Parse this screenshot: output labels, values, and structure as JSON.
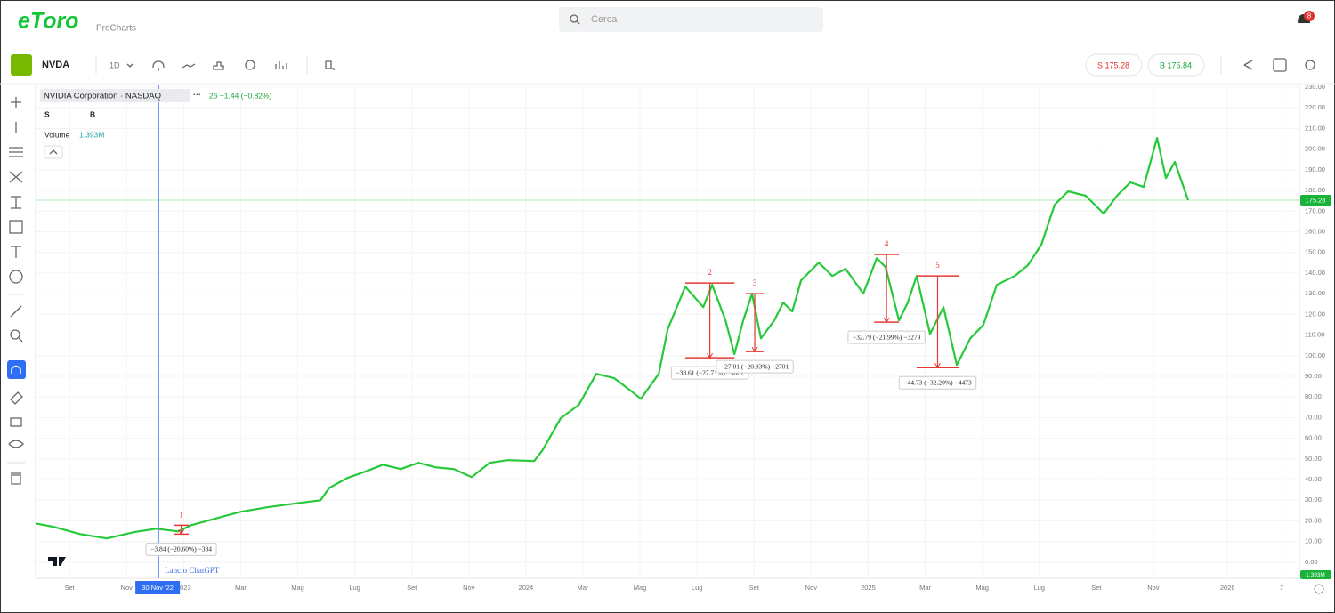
{
  "header": {
    "logo": "eToro",
    "product": "ProCharts",
    "search_placeholder": "Cerca",
    "notification_count": "8"
  },
  "toolbar": {
    "symbol": "NVDA",
    "interval": "1D",
    "sell": "S 175.28",
    "buy": "B 175.84"
  },
  "legend": {
    "name": "NVIDIA Corporation · NASDAQ",
    "more": "···",
    "change": "26 −1.44 (−0.82%)",
    "sell": "S",
    "buy": "B",
    "volume_label": "Volume",
    "volume_value": "1.393M"
  },
  "chart_data": {
    "type": "line",
    "color": "#27c93a",
    "grid": true,
    "xlim": [
      -1.19,
      43.12
    ],
    "ylim": [
      -7.8,
      231.3
    ],
    "xticks": [
      {
        "value": 0,
        "label": "Set"
      },
      {
        "value": 2,
        "label": "Nov"
      },
      {
        "value": 4,
        "label": "2023"
      },
      {
        "value": 6,
        "label": "Mar"
      },
      {
        "value": 8,
        "label": "Mag"
      },
      {
        "value": 10,
        "label": "Lug"
      },
      {
        "value": 12,
        "label": "Set"
      },
      {
        "value": 14,
        "label": "Nov"
      },
      {
        "value": 16,
        "label": "2024"
      },
      {
        "value": 18,
        "label": "Mar"
      },
      {
        "value": 20,
        "label": "Mag"
      },
      {
        "value": 22,
        "label": "Lug"
      },
      {
        "value": 24,
        "label": "Set"
      },
      {
        "value": 26,
        "label": "Nov"
      },
      {
        "value": 28,
        "label": "2025"
      },
      {
        "value": 30,
        "label": "Mar"
      },
      {
        "value": 32,
        "label": "Mag"
      },
      {
        "value": 34,
        "label": "Lug"
      },
      {
        "value": 36,
        "label": "Set"
      },
      {
        "value": 38,
        "label": "Nov"
      },
      {
        "value": 40.6,
        "label": "2026"
      },
      {
        "value": 42.5,
        "label": "7"
      }
    ],
    "yticks": [
      {
        "value": 0,
        "label": "0.00"
      },
      {
        "value": 10,
        "label": "10.00"
      },
      {
        "value": 20,
        "label": "20.00"
      },
      {
        "value": 30,
        "label": "30.00"
      },
      {
        "value": 40,
        "label": "40.00"
      },
      {
        "value": 50,
        "label": "50.00"
      },
      {
        "value": 60,
        "label": "60.00"
      },
      {
        "value": 70,
        "label": "70.00"
      },
      {
        "value": 80,
        "label": "80.00"
      },
      {
        "value": 90,
        "label": "90.00"
      },
      {
        "value": 100,
        "label": "100.00"
      },
      {
        "value": 110,
        "label": "110.00"
      },
      {
        "value": 120,
        "label": "120.00"
      },
      {
        "value": 130,
        "label": "130.00"
      },
      {
        "value": 140,
        "label": "140.00"
      },
      {
        "value": 150,
        "label": "150.00"
      },
      {
        "value": 160,
        "label": "160.00"
      },
      {
        "value": 170,
        "label": "170.00"
      },
      {
        "value": 180,
        "label": "180.00"
      },
      {
        "value": 190,
        "label": "190.00"
      },
      {
        "value": 200,
        "label": "200.00"
      },
      {
        "value": 210,
        "label": "210.00"
      },
      {
        "value": 220,
        "label": "220.00"
      },
      {
        "value": 230,
        "label": "230.00"
      }
    ],
    "x": [
      -1.19,
      -0.56,
      0.37,
      1.31,
      2.25,
      3.03,
      3.81,
      4.27,
      5.05,
      5.99,
      6.93,
      7.86,
      8.8,
      9.11,
      9.74,
      10.36,
      10.99,
      11.61,
      12.23,
      12.86,
      13.48,
      14.1,
      14.73,
      15.35,
      16.29,
      16.6,
      17.22,
      17.85,
      18.47,
      19.1,
      19.72,
      20.03,
      20.66,
      20.97,
      21.59,
      22.22,
      22.53,
      23.0,
      23.31,
      23.62,
      23.93,
      24.24,
      24.71,
      25.02,
      25.34,
      25.65,
      26.27,
      26.74,
      27.21,
      27.83,
      28.3,
      28.61,
      29.08,
      29.39,
      29.7,
      30.17,
      30.64,
      31.11,
      31.58,
      32.04,
      32.51,
      33.14,
      33.6,
      34.07,
      34.54,
      35.01,
      35.63,
      36.26,
      36.72,
      37.19,
      37.66,
      38.13,
      38.44,
      38.75,
      39.22
    ],
    "values": [
      18.8,
      17.1,
      13.6,
      11.5,
      14.5,
      16.2,
      14.9,
      17.9,
      20.9,
      24.4,
      26.6,
      28.3,
      30.0,
      36.0,
      40.8,
      43.8,
      47.2,
      45.1,
      48.1,
      45.9,
      45.1,
      41.2,
      48.1,
      49.4,
      49.0,
      54.6,
      69.7,
      76.1,
      91.2,
      89.1,
      82.6,
      79.1,
      91.2,
      112.8,
      133.4,
      123.5,
      134.3,
      117.1,
      100.7,
      117.1,
      130.0,
      108.4,
      117.1,
      125.7,
      121.4,
      136.5,
      145.1,
      138.6,
      142.1,
      130.0,
      147.2,
      142.9,
      117.1,
      125.7,
      138.6,
      110.6,
      123.5,
      95.5,
      108.4,
      114.9,
      134.3,
      138.6,
      143.8,
      153.7,
      173.1,
      179.6,
      177.4,
      168.8,
      177.4,
      183.9,
      181.7,
      205.4,
      186.0,
      193.8,
      175.28
    ],
    "last_price": 175.28,
    "crosshair": {
      "x": 3.12,
      "label": "30 Nov '22",
      "note": "Lancio ChatGPT"
    },
    "annotations": [
      {
        "number": "1",
        "x": [
          3.65,
          4.18
        ],
        "top": 17.9,
        "bottom": 13.6,
        "text": "−3.84 (−20.60%) −384"
      },
      {
        "number": "2",
        "x": [
          21.59,
          23.31
        ],
        "top": 135.2,
        "bottom": 99.0,
        "text": "−38.61 (−27.71%) −3861"
      },
      {
        "number": "3",
        "x": [
          23.71,
          24.34
        ],
        "top": 130.0,
        "bottom": 102.0,
        "text": "−27.01 (−20.83%) −2701"
      },
      {
        "number": "4",
        "x": [
          28.21,
          29.08
        ],
        "top": 149.0,
        "bottom": 116.2,
        "text": "−32.79 (−21.99%) −3279"
      },
      {
        "number": "5",
        "x": [
          29.7,
          31.17
        ],
        "top": 138.6,
        "bottom": 94.2,
        "text": "−44.73 (−32.20%) −4473"
      }
    ]
  }
}
